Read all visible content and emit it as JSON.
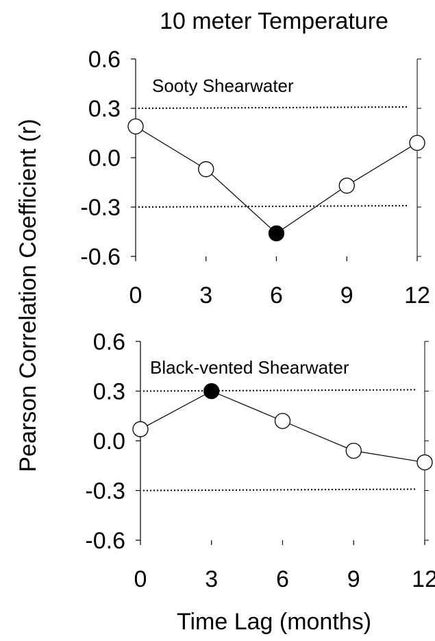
{
  "figure": {
    "title": "10 meter Temperature",
    "ylabel": "Pearson Correlation Coefficient (r)",
    "xlabel": "Time Lag (months)"
  },
  "chart_data": [
    {
      "type": "line",
      "annotation": "Sooty Shearwater",
      "x": [
        0,
        3,
        6,
        9,
        12
      ],
      "y": [
        0.19,
        -0.07,
        -0.46,
        -0.17,
        0.09
      ],
      "significant": [
        false,
        false,
        true,
        false,
        false
      ],
      "xticks": [
        "0",
        "3",
        "6",
        "9",
        "12"
      ],
      "yticks": [
        "0.6",
        "0.3",
        "0.0",
        "-0.3",
        "-0.6"
      ],
      "xlim": [
        0,
        12
      ],
      "ylim": [
        -0.6,
        0.6
      ],
      "thresholds": [
        0.3,
        -0.3
      ],
      "grid": false
    },
    {
      "type": "line",
      "annotation": "Black-vented Shearwater",
      "x": [
        0,
        3,
        6,
        9,
        12
      ],
      "y": [
        0.07,
        0.3,
        0.12,
        -0.06,
        -0.13
      ],
      "significant": [
        false,
        true,
        false,
        false,
        false
      ],
      "xticks": [
        "0",
        "3",
        "6",
        "9",
        "12"
      ],
      "yticks": [
        "0.6",
        "0.3",
        "0.0",
        "-0.3",
        "-0.6"
      ],
      "xlim": [
        0,
        12
      ],
      "ylim": [
        -0.6,
        0.6
      ],
      "thresholds": [
        0.3,
        -0.3
      ],
      "grid": false
    }
  ]
}
